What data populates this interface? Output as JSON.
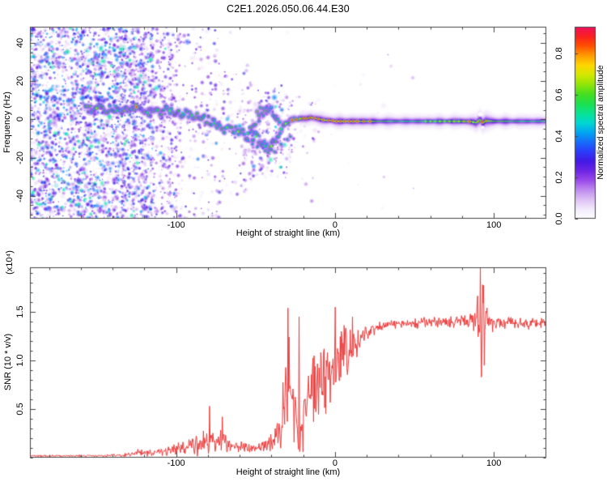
{
  "title": "C2E1.2026.050.06.44.E30",
  "chart_data": [
    {
      "type": "heatmap",
      "title": "C2E1.2026.050.06.44.E30",
      "xlabel": "Height of straight line (km)",
      "ylabel": "Frequency (Hz)",
      "xlim": [
        -192,
        133
      ],
      "ylim": [
        -52,
        48.5
      ],
      "xticks": [
        -100,
        0,
        100
      ],
      "xtick_labels": [
        "-100",
        "0",
        "100"
      ],
      "xminor_step": 20,
      "yticks": [
        40,
        20,
        0,
        -20,
        -40
      ],
      "ytick_labels": [
        "40",
        "20",
        "0",
        "-20",
        "-40"
      ],
      "yminor_step": 5,
      "grid": false,
      "colorbar": {
        "label": "Normalized spectral amplitude",
        "ticks": [
          0.0,
          0.2,
          0.4,
          0.6,
          0.8
        ],
        "tick_labels": [
          "0.0",
          "0.2",
          "0.4",
          "0.6",
          "0.8"
        ],
        "value_range": [
          0,
          0.93
        ],
        "colormap": [
          [
            0.0,
            "#ffffff"
          ],
          [
            0.06,
            "#f0e4fa"
          ],
          [
            0.13,
            "#c79af0"
          ],
          [
            0.2,
            "#8f35e8"
          ],
          [
            0.27,
            "#4613e0"
          ],
          [
            0.34,
            "#2448ff"
          ],
          [
            0.42,
            "#00a8f0"
          ],
          [
            0.48,
            "#00e8c8"
          ],
          [
            0.54,
            "#10e060"
          ],
          [
            0.6,
            "#40dd20"
          ],
          [
            0.67,
            "#b0e800"
          ],
          [
            0.73,
            "#ffe800"
          ],
          [
            0.8,
            "#ff9000"
          ],
          [
            0.86,
            "#ff2800"
          ],
          [
            0.93,
            "#f01060"
          ],
          [
            1.0,
            "#e81890"
          ]
        ]
      },
      "noise_regions": [
        {
          "km0": -192,
          "km1": -131,
          "f0": -52,
          "f1": 48.5,
          "n": 2400,
          "vmax": 0.42
        },
        {
          "km0": -131,
          "km1": -114,
          "f0": -52,
          "f1": 48.5,
          "n": 620,
          "vmax": 0.38
        },
        {
          "km0": -114,
          "km1": -96,
          "f0": -52,
          "f1": 48.5,
          "n": 300,
          "vmax": 0.3
        },
        {
          "km0": -96,
          "km1": -72,
          "f0": -52,
          "f1": 48.5,
          "n": 170,
          "vmax": 0.26
        },
        {
          "km0": -72,
          "km1": -52,
          "f0": -40,
          "f1": 30,
          "n": 110,
          "vmax": 0.24
        },
        {
          "km0": -52,
          "km1": -28,
          "f0": -30,
          "f1": 18,
          "n": 160,
          "vmax": 0.3
        },
        {
          "km0": -28,
          "km1": -10,
          "f0": -18,
          "f1": 12,
          "n": 40,
          "vmax": 0.2
        },
        {
          "km0": -192,
          "km1": 50,
          "f0": -52,
          "f1": 48.5,
          "n": 60,
          "vmax": 0.12
        }
      ],
      "noise_columns": [
        {
          "km": -133,
          "f0": -52,
          "f1": 48,
          "n": 90,
          "vmax": 0.32,
          "hw": 1.5
        },
        {
          "km": -127,
          "f0": -52,
          "f1": 48,
          "n": 80,
          "vmax": 0.3,
          "hw": 1.5
        },
        {
          "km": -121,
          "f0": -52,
          "f1": 48,
          "n": 70,
          "vmax": 0.3,
          "hw": 1.3
        },
        {
          "km": -115,
          "f0": -52,
          "f1": 48,
          "n": 55,
          "vmax": 0.28,
          "hw": 1.3
        },
        {
          "km": -109,
          "f0": -52,
          "f1": 48,
          "n": 45,
          "vmax": 0.26,
          "hw": 1.2
        },
        {
          "km": -103,
          "f0": -40,
          "f1": 40,
          "n": 35,
          "vmax": 0.24,
          "hw": 1.2
        },
        {
          "km": -57,
          "f0": -22,
          "f1": 6,
          "n": 22,
          "vmax": 0.18,
          "hw": 0.8
        },
        {
          "km": -52,
          "f0": -24,
          "f1": 7,
          "n": 24,
          "vmax": 0.2,
          "hw": 0.8
        },
        {
          "km": -47,
          "f0": -26,
          "f1": 9,
          "n": 24,
          "vmax": 0.2,
          "hw": 0.8
        },
        {
          "km": -42,
          "f0": -27,
          "f1": 9,
          "n": 26,
          "vmax": 0.22,
          "hw": 0.8
        },
        {
          "km": -37,
          "f0": -22,
          "f1": 10,
          "n": 22,
          "vmax": 0.2,
          "hw": 0.8
        },
        {
          "km": -33,
          "f0": -19,
          "f1": 10,
          "n": 18,
          "vmax": 0.18,
          "hw": 0.7
        },
        {
          "km": -29,
          "f0": -16,
          "f1": 10,
          "n": 14,
          "vmax": 0.16,
          "hw": 0.7
        }
      ],
      "ridge": {
        "main": [
          [
            -157,
            5.5
          ],
          [
            -152,
            5
          ],
          [
            -148,
            6.5
          ],
          [
            -144,
            4.5
          ],
          [
            -140,
            6
          ],
          [
            -136,
            4
          ],
          [
            -132,
            6.5
          ],
          [
            -128,
            5
          ],
          [
            -125,
            6.5
          ],
          [
            -122,
            5
          ],
          [
            -118,
            3.5
          ],
          [
            -114,
            5.5
          ],
          [
            -110,
            4
          ],
          [
            -106,
            5.5
          ],
          [
            -102,
            3.5
          ],
          [
            -98,
            2.5
          ],
          [
            -94,
            4
          ],
          [
            -90,
            2
          ],
          [
            -86,
            2.5
          ],
          [
            -82,
            0.5
          ],
          [
            -78,
            -1
          ],
          [
            -74,
            -3
          ],
          [
            -70,
            -5
          ],
          [
            -66,
            -3.5
          ],
          [
            -62,
            -6
          ],
          [
            -58,
            -8
          ],
          [
            -54,
            -7
          ],
          [
            -50,
            -9
          ],
          [
            -47,
            -12
          ],
          [
            -44,
            -14
          ],
          [
            -41,
            -15
          ],
          [
            -38,
            -12
          ],
          [
            -36,
            -9
          ],
          [
            -34,
            -5
          ],
          [
            -32,
            -3
          ],
          [
            -30,
            -1.5
          ],
          [
            -27,
            -0.5
          ],
          [
            -24,
            0
          ],
          [
            -21,
            0.5
          ],
          [
            -18,
            0.5
          ],
          [
            -15,
            1
          ],
          [
            -12,
            0.5
          ],
          [
            -9,
            0
          ],
          [
            -6,
            -0.5
          ],
          [
            -3,
            -0.5
          ],
          [
            0,
            -1
          ],
          [
            20,
            -1
          ],
          [
            40,
            -1
          ],
          [
            60,
            -1
          ],
          [
            80,
            -1
          ],
          [
            86,
            -1.2
          ],
          [
            89,
            -1.8
          ],
          [
            91.5,
            0
          ],
          [
            93,
            -2
          ],
          [
            95,
            -0.8
          ],
          [
            100,
            -1
          ],
          [
            120,
            -1
          ],
          [
            133,
            -1
          ]
        ],
        "branch": [
          [
            -52,
            -3
          ],
          [
            -49,
            1
          ],
          [
            -46,
            4.5
          ],
          [
            -43,
            7
          ],
          [
            -40,
            6
          ],
          [
            -37,
            2
          ],
          [
            -35,
            -1
          ]
        ],
        "extra_blobs": [
          [
            -55,
            -11
          ],
          [
            -52,
            -13
          ],
          [
            -49,
            -14.5
          ],
          [
            -46,
            -13
          ],
          [
            -44,
            -16.5
          ],
          [
            -42,
            -17.5
          ],
          [
            -40,
            -16
          ],
          [
            -38,
            -17
          ],
          [
            -34,
            -13
          ],
          [
            -30,
            -10.5
          ],
          [
            -28,
            -9
          ],
          [
            -45,
            2
          ],
          [
            -48,
            -1
          ]
        ],
        "hotspots": [
          [
            -150,
            0.75
          ],
          [
            -137,
            0.6
          ],
          [
            -125,
            0.88
          ],
          [
            -118,
            0.62
          ],
          [
            -112,
            0.6
          ],
          [
            -104,
            0.65
          ],
          [
            -96,
            0.6
          ],
          [
            -90,
            0.62
          ],
          [
            -83,
            0.58
          ],
          [
            -76,
            0.6
          ],
          [
            -68,
            0.64
          ],
          [
            -61,
            0.7
          ],
          [
            -55,
            0.62
          ],
          [
            -50,
            0.66
          ],
          [
            -44,
            0.6
          ],
          [
            -40,
            0.72
          ],
          [
            -34,
            0.65
          ],
          [
            -31,
            0.7
          ]
        ]
      },
      "band": {
        "km0": -22,
        "km1": 133,
        "center_value": 0.58,
        "half_width_hz": 5.2,
        "disturbance_km": 91.5,
        "hotspots": [
          [
            -27,
            0.9
          ],
          [
            -24.5,
            0.88
          ],
          [
            -22,
            0.75
          ],
          [
            -20,
            0.92
          ],
          [
            -18,
            0.9
          ],
          [
            -15.5,
            0.88
          ],
          [
            -13,
            0.93
          ],
          [
            -10.5,
            0.9
          ],
          [
            -7.5,
            0.88
          ],
          [
            -4,
            0.92
          ],
          [
            -1.5,
            0.9
          ],
          [
            1,
            0.93
          ],
          [
            3.5,
            0.88
          ],
          [
            6,
            0.9
          ],
          [
            9,
            0.92
          ],
          [
            11.5,
            0.88
          ],
          [
            14,
            0.9
          ],
          [
            18,
            0.88
          ],
          [
            22,
            0.9
          ],
          [
            57,
            0.68
          ],
          [
            60,
            0.7
          ],
          [
            63,
            0.68
          ],
          [
            66,
            0.72
          ],
          [
            69,
            0.7
          ],
          [
            72,
            0.72
          ],
          [
            75,
            0.74
          ],
          [
            78,
            0.72
          ],
          [
            81,
            0.78
          ],
          [
            84.5,
            0.9
          ],
          [
            87,
            0.72
          ],
          [
            90,
            0.78
          ],
          [
            92.5,
            0.92
          ],
          [
            95,
            0.82
          ]
        ]
      }
    },
    {
      "type": "line",
      "xlabel": "Height of straight line (km)",
      "ylabel": "SNR (10 * v/v)",
      "ylabel_scale": "(x10⁴)",
      "color": "#ee3b3b",
      "xlim": [
        -192,
        133
      ],
      "ylim": [
        0,
        1.96
      ],
      "xticks": [
        -100,
        0,
        100
      ],
      "xtick_labels": [
        "-100",
        "0",
        "100"
      ],
      "xminor_step": 20,
      "yticks": [
        0.5,
        1.0,
        1.5
      ],
      "ytick_labels": [
        "0.5",
        "1.0",
        "1.5"
      ],
      "yminor_step": 0.1,
      "grid": false,
      "anchors": [
        [
          -192,
          0.018,
          0.01
        ],
        [
          -170,
          0.018,
          0.01
        ],
        [
          -150,
          0.02,
          0.012
        ],
        [
          -138,
          0.022,
          0.015
        ],
        [
          -130,
          0.035,
          0.025
        ],
        [
          -124,
          0.05,
          0.035
        ],
        [
          -118,
          0.045,
          0.03
        ],
        [
          -112,
          0.055,
          0.04
        ],
        [
          -106,
          0.06,
          0.045
        ],
        [
          -100,
          0.08,
          0.06
        ],
        [
          -95,
          0.1,
          0.07
        ],
        [
          -90,
          0.12,
          0.09
        ],
        [
          -85,
          0.13,
          0.1
        ],
        [
          -80,
          0.16,
          0.13
        ],
        [
          -75,
          0.17,
          0.12
        ],
        [
          -70,
          0.16,
          0.11
        ],
        [
          -65,
          0.13,
          0.08
        ],
        [
          -60,
          0.11,
          0.06
        ],
        [
          -55,
          0.1,
          0.05
        ],
        [
          -50,
          0.1,
          0.05
        ],
        [
          -45,
          0.12,
          0.07
        ],
        [
          -41,
          0.15,
          0.1
        ],
        [
          -38,
          0.2,
          0.15
        ],
        [
          -35,
          0.3,
          0.2
        ],
        [
          -32,
          0.55,
          0.35
        ],
        [
          -29,
          0.8,
          0.55
        ],
        [
          -27,
          0.6,
          0.45
        ],
        [
          -25,
          0.35,
          0.3
        ],
        [
          -23,
          0.25,
          0.2
        ],
        [
          -21,
          0.3,
          0.25
        ],
        [
          -19,
          0.5,
          0.3
        ],
        [
          -17,
          0.6,
          0.3
        ],
        [
          -15,
          0.65,
          0.3
        ],
        [
          -12,
          0.7,
          0.35
        ],
        [
          -9,
          0.75,
          0.35
        ],
        [
          -6,
          0.8,
          0.35
        ],
        [
          -3,
          0.85,
          0.35
        ],
        [
          0,
          0.9,
          0.4
        ],
        [
          3,
          1.0,
          0.3
        ],
        [
          6,
          1.05,
          0.28
        ],
        [
          9,
          1.1,
          0.25
        ],
        [
          12,
          1.15,
          0.2
        ],
        [
          15,
          1.2,
          0.15
        ],
        [
          18,
          1.25,
          0.1
        ],
        [
          22,
          1.3,
          0.07
        ],
        [
          26,
          1.34,
          0.05
        ],
        [
          30,
          1.36,
          0.045
        ],
        [
          40,
          1.38,
          0.045
        ],
        [
          50,
          1.38,
          0.05
        ],
        [
          60,
          1.4,
          0.055
        ],
        [
          70,
          1.38,
          0.06
        ],
        [
          80,
          1.4,
          0.07
        ],
        [
          85,
          1.41,
          0.09
        ],
        [
          88,
          1.43,
          0.12
        ],
        [
          90,
          1.45,
          0.3
        ],
        [
          92,
          1.35,
          0.55
        ],
        [
          94,
          1.4,
          0.3
        ],
        [
          96,
          1.38,
          0.12
        ],
        [
          100,
          1.38,
          0.07
        ],
        [
          110,
          1.4,
          0.055
        ],
        [
          120,
          1.38,
          0.055
        ],
        [
          133,
          1.39,
          0.055
        ]
      ],
      "spikes": [
        [
          -79,
          0.53
        ],
        [
          -71,
          0.42
        ],
        [
          -29.5,
          1.54
        ],
        [
          -22.5,
          1.45
        ],
        [
          -20,
          0.06
        ],
        [
          -13,
          1.05
        ],
        [
          -7,
          1.12
        ],
        [
          0,
          1.55
        ],
        [
          4,
          1.3
        ],
        [
          7,
          1.28
        ],
        [
          11,
          1.45
        ],
        [
          91.5,
          1.95
        ],
        [
          92.3,
          0.83
        ],
        [
          93,
          1.78
        ],
        [
          93.8,
          0.95
        ]
      ]
    }
  ]
}
